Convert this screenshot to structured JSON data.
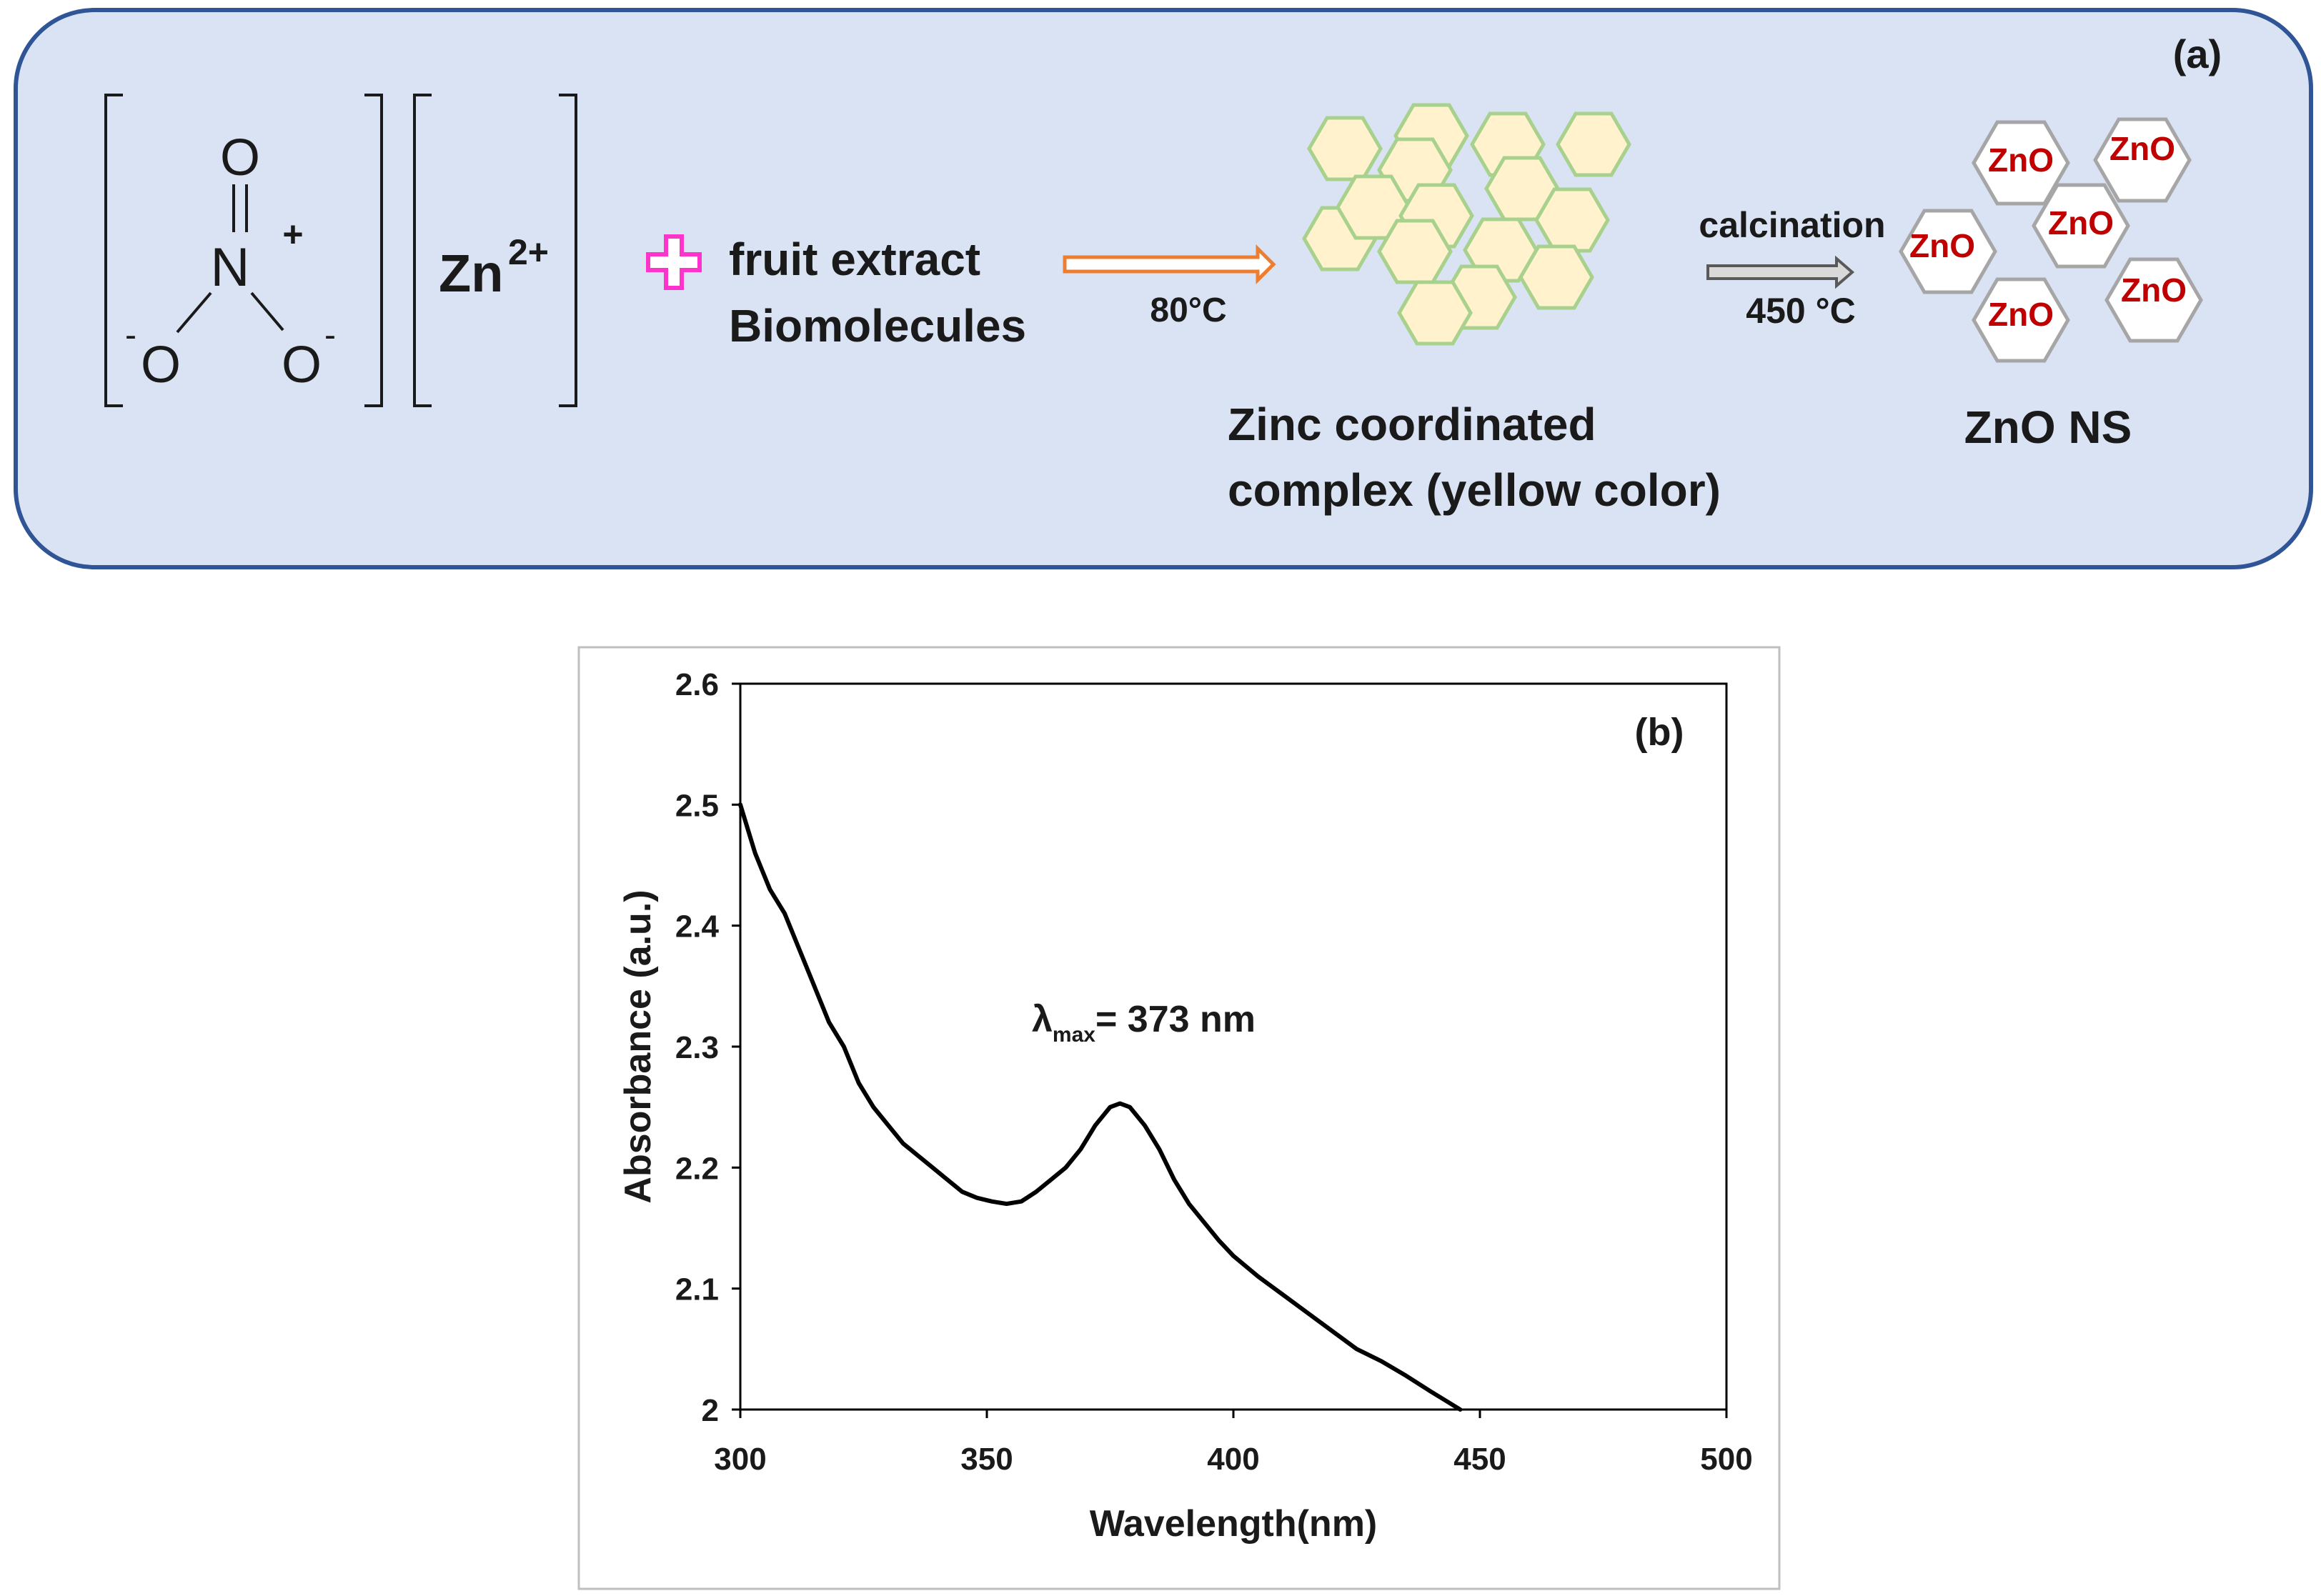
{
  "panel_a": {
    "label": "(a)",
    "nitrate": {
      "atom_top": "O",
      "atom_center": "N",
      "atom_left": "O",
      "atom_right": "O",
      "charge_plus": "+",
      "charge_left": "-",
      "charge_right": "-"
    },
    "zinc": {
      "symbol": "Zn",
      "charge": "2+"
    },
    "reagent_line1": "fruit extract",
    "reagent_line2": "Biomolecules",
    "step1_condition": "80°C",
    "complex_line1": "Zinc coordinated",
    "complex_line2": "complex (yellow color)",
    "step2_label": "calcination",
    "step2_condition": "450 °C",
    "particle_label": "ZnO",
    "product_label": "ZnO NS",
    "colors": {
      "panel_bg": "#dae3f3",
      "panel_border": "#2f5597",
      "plus": "#ff33cc",
      "arrow1": "#ed7d31",
      "hex_fill": "#fff2cc",
      "hex_stroke": "#a9d18e",
      "zno_text": "#c00000",
      "zno_stroke": "#a6a6a6"
    }
  },
  "panel_b": {
    "label": "(b)",
    "annotation": {
      "symbol": "λ",
      "subscript": "max",
      "text": "= 373 nm"
    }
  },
  "chart_data": {
    "type": "line",
    "title": "",
    "xlabel": "Wavelength(nm)",
    "ylabel": "Absorbance (a.u.)",
    "xlim": [
      300,
      500
    ],
    "ylim": [
      2,
      2.6
    ],
    "xticks": [
      300,
      350,
      400,
      450,
      500
    ],
    "yticks": [
      2,
      2.1,
      2.2,
      2.3,
      2.4,
      2.5,
      2.6
    ],
    "ytick_labels": [
      "2",
      "2.1",
      "2.2",
      "2.3",
      "2.4",
      "2.5",
      "2.6"
    ],
    "series": [
      {
        "name": "ZnO NS",
        "color": "#000000",
        "x": [
          300,
          303,
          306,
          309,
          312,
          315,
          318,
          321,
          324,
          327,
          330,
          333,
          336,
          339,
          342,
          345,
          348,
          351,
          354,
          357,
          360,
          363,
          366,
          369,
          372,
          375,
          377,
          379,
          382,
          385,
          388,
          391,
          394,
          397,
          400,
          405,
          410,
          415,
          420,
          425,
          430,
          435,
          440,
          444,
          446
        ],
        "y": [
          2.5,
          2.46,
          2.43,
          2.41,
          2.38,
          2.35,
          2.32,
          2.3,
          2.27,
          2.25,
          2.235,
          2.22,
          2.21,
          2.2,
          2.19,
          2.18,
          2.175,
          2.172,
          2.17,
          2.172,
          2.18,
          2.19,
          2.2,
          2.215,
          2.235,
          2.25,
          2.253,
          2.25,
          2.235,
          2.215,
          2.19,
          2.17,
          2.155,
          2.14,
          2.127,
          2.11,
          2.095,
          2.08,
          2.065,
          2.05,
          2.04,
          2.028,
          2.015,
          2.005,
          2.0
        ]
      }
    ],
    "annotations": [
      "λmax= 373 nm",
      "(b)"
    ],
    "grid": false,
    "legend": "none"
  }
}
